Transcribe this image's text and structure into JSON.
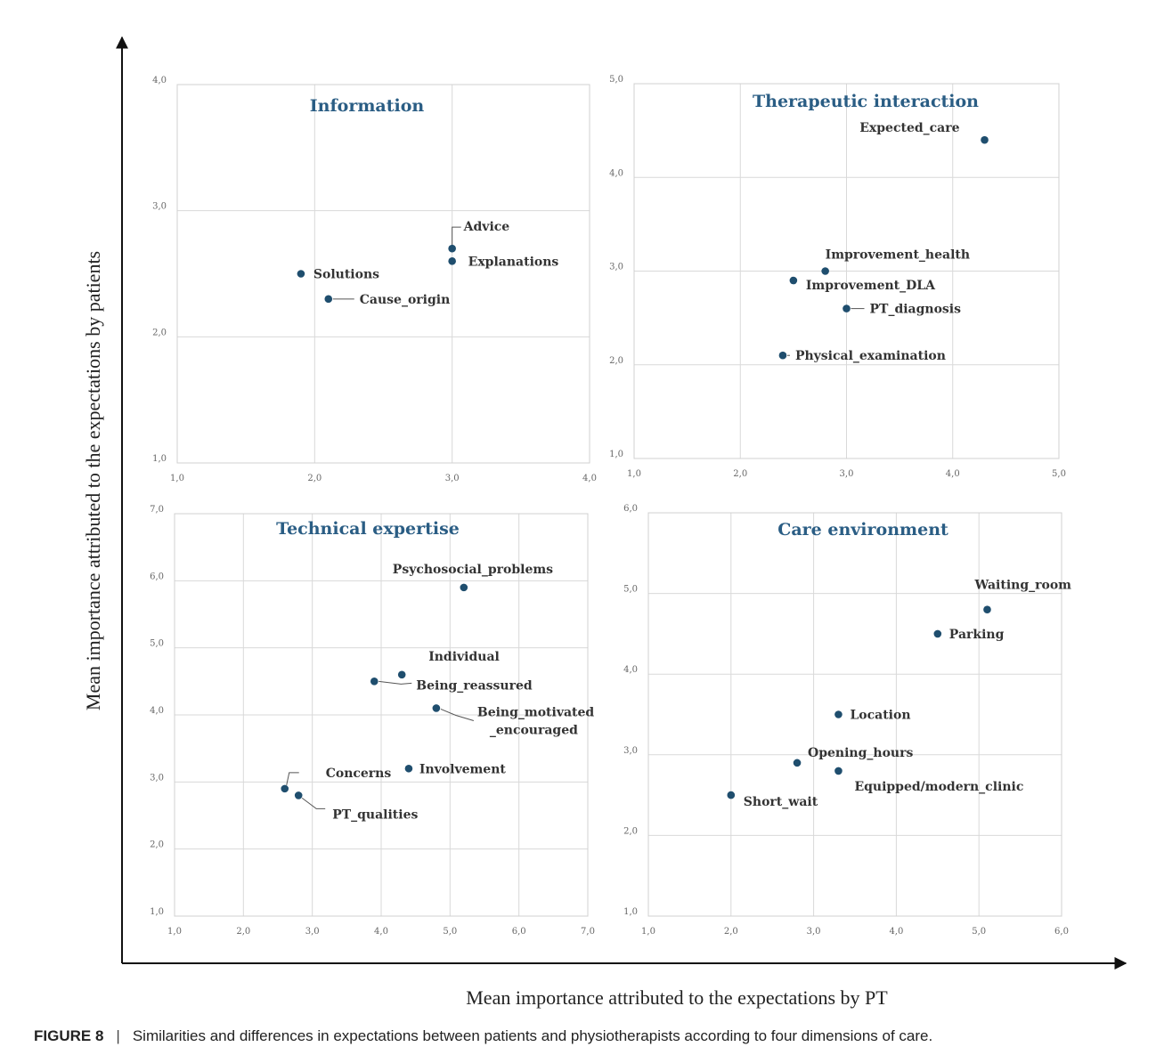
{
  "figure": {
    "y_title": "Mean importance attributed to the expectations by patients",
    "x_title": "Mean importance attributed to the expectations by PT",
    "caption_label": "FIGURE 8",
    "caption_separator": "|",
    "caption_text": "Similarities and differences in expectations between patients and physiotherapists according to four dimensions of care."
  },
  "chart_data": [
    {
      "type": "scatter",
      "title": "Information",
      "xlim": [
        1.0,
        4.0
      ],
      "ylim": [
        1.0,
        4.0
      ],
      "x_ticks": [
        "1,0",
        "2,0",
        "3,0",
        "4,0"
      ],
      "y_ticks": [
        "1,0",
        "2,0",
        "3,0",
        "4,0"
      ],
      "points": [
        {
          "label": "Advice",
          "x": 3.0,
          "y": 2.7
        },
        {
          "label": "Explanations",
          "x": 3.0,
          "y": 2.6
        },
        {
          "label": "Solutions",
          "x": 1.9,
          "y": 2.5
        },
        {
          "label": "Cause_origin",
          "x": 2.1,
          "y": 2.3
        }
      ]
    },
    {
      "type": "scatter",
      "title": "Therapeutic interaction",
      "xlim": [
        1.0,
        5.0
      ],
      "ylim": [
        1.0,
        5.0
      ],
      "x_ticks": [
        "1,0",
        "2,0",
        "3,0",
        "4,0",
        "5,0"
      ],
      "y_ticks": [
        "1,0",
        "2,0",
        "3,0",
        "4,0",
        "5,0"
      ],
      "points": [
        {
          "label": "Expected_care",
          "x": 4.3,
          "y": 4.4
        },
        {
          "label": "Improvement_health",
          "x": 2.8,
          "y": 3.0
        },
        {
          "label": "Improvement_DLA",
          "x": 2.5,
          "y": 2.9
        },
        {
          "label": "PT_diagnosis",
          "x": 3.0,
          "y": 2.6
        },
        {
          "label": "Physical_examination",
          "x": 2.4,
          "y": 2.1
        }
      ]
    },
    {
      "type": "scatter",
      "title": "Technical expertise",
      "xlim": [
        1.0,
        7.0
      ],
      "ylim": [
        1.0,
        7.0
      ],
      "x_ticks": [
        "1,0",
        "2,0",
        "3,0",
        "4,0",
        "5,0",
        "6,0",
        "7,0"
      ],
      "y_ticks": [
        "1,0",
        "2,0",
        "3,0",
        "4,0",
        "5,0",
        "6,0",
        "7,0"
      ],
      "points": [
        {
          "label": "Psychosocial_problems",
          "x": 5.2,
          "y": 5.9
        },
        {
          "label": "Individual",
          "x": 4.3,
          "y": 4.6
        },
        {
          "label": "Being_reassured",
          "x": 3.9,
          "y": 4.5
        },
        {
          "label": "Being_motivated",
          "label2": "_encouraged",
          "x": 4.8,
          "y": 4.1
        },
        {
          "label": "Involvement",
          "x": 4.4,
          "y": 3.2
        },
        {
          "label": "Concerns",
          "x": 2.6,
          "y": 2.9
        },
        {
          "label": "PT_qualities",
          "x": 2.8,
          "y": 2.8
        }
      ]
    },
    {
      "type": "scatter",
      "title": "Care environment",
      "xlim": [
        1.0,
        6.0
      ],
      "ylim": [
        1.0,
        6.0
      ],
      "x_ticks": [
        "1,0",
        "2,0",
        "3,0",
        "4,0",
        "5,0",
        "6,0"
      ],
      "y_ticks": [
        "1,0",
        "2,0",
        "3,0",
        "4,0",
        "5,0",
        "6,0"
      ],
      "points": [
        {
          "label": "Waiting_room",
          "x": 5.1,
          "y": 4.8
        },
        {
          "label": "Parking",
          "x": 4.5,
          "y": 4.5
        },
        {
          "label": "Location",
          "x": 3.3,
          "y": 3.5
        },
        {
          "label": "Opening_hours",
          "x": 2.8,
          "y": 2.9
        },
        {
          "label": "Equipped/modern_clinic",
          "x": 3.3,
          "y": 2.8
        },
        {
          "label": "Short_wait",
          "x": 2.0,
          "y": 2.5
        }
      ]
    }
  ]
}
